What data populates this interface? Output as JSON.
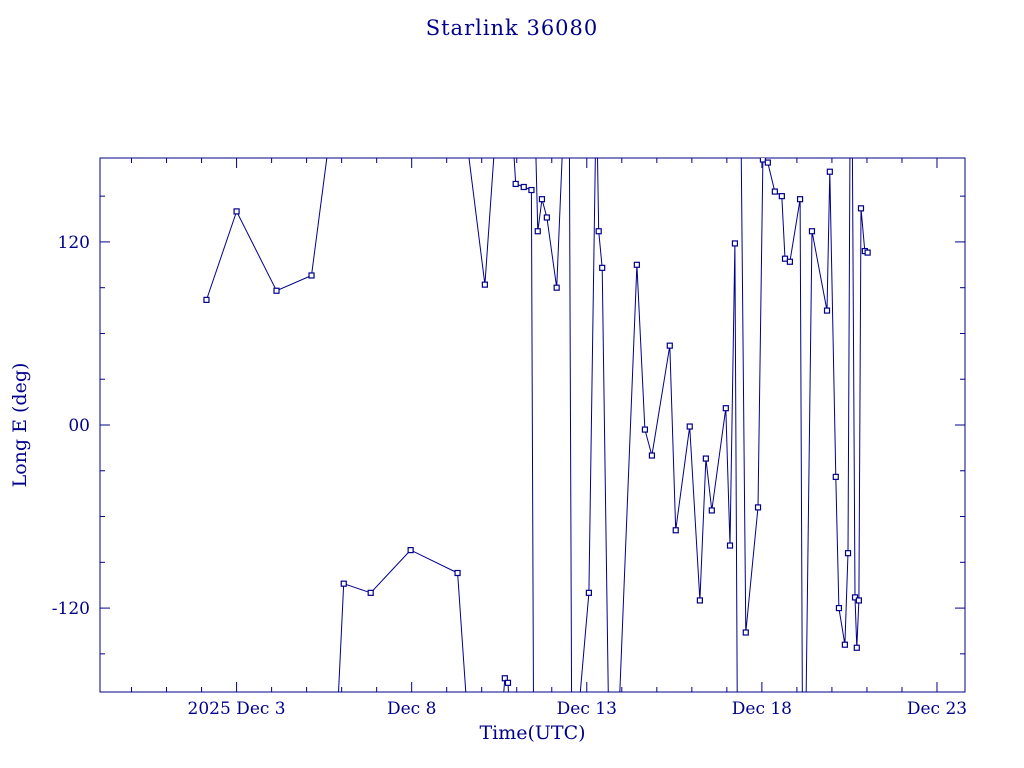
{
  "title": "Starlink 36080",
  "colors": {
    "plot": "#00008B",
    "background": "#ffffff"
  },
  "chart_data": {
    "type": "line",
    "title": "Starlink 36080",
    "xlabel": "Time(UTC)",
    "ylabel": "Long E (deg)",
    "marker": "open-square",
    "color": "#00008B",
    "grid": false,
    "legend": "none",
    "xlim": [
      -0.9,
      23.8
    ],
    "ylim": [
      -175,
      175
    ],
    "x_unit": "day of 2025 Dec (UTC)",
    "x_major_ticks": [
      3,
      8,
      13,
      18,
      23
    ],
    "x_tick_labels": [
      "2025 Dec 3",
      "Dec 8",
      "Dec 13",
      "Dec 18",
      "Dec 23"
    ],
    "x_minor_tick_step": 1,
    "y_major_ticks": [
      -120,
      0,
      120
    ],
    "y_tick_labels": [
      "-120",
      "00",
      "120"
    ],
    "y_minor_tick_step": 30,
    "segments": [
      [
        [
          2.14,
          82
        ],
        [
          3.0,
          140
        ],
        [
          4.14,
          88
        ],
        [
          5.14,
          98
        ],
        [
          5.72,
          200
        ]
      ],
      [
        [
          5.86,
          -200
        ],
        [
          6.06,
          -104
        ],
        [
          6.83,
          -110
        ],
        [
          7.97,
          -82
        ],
        [
          9.31,
          -97
        ],
        [
          9.62,
          -200
        ]
      ],
      [
        [
          9.5,
          200
        ],
        [
          10.09,
          92
        ],
        [
          10.42,
          200
        ]
      ],
      [
        [
          10.55,
          -200
        ],
        [
          10.66,
          -166
        ],
        [
          10.75,
          -169
        ],
        [
          10.82,
          -200
        ]
      ],
      [
        [
          10.86,
          200
        ],
        [
          10.97,
          158
        ],
        [
          11.2,
          156
        ],
        [
          11.42,
          154
        ],
        [
          11.48,
          -200
        ]
      ],
      [
        [
          11.52,
          200
        ],
        [
          11.6,
          127
        ],
        [
          11.72,
          148
        ],
        [
          11.86,
          136
        ],
        [
          12.14,
          90
        ],
        [
          12.34,
          200
        ]
      ],
      [
        [
          12.5,
          200
        ],
        [
          12.57,
          -200
        ]
      ],
      [
        [
          12.72,
          -200
        ],
        [
          13.06,
          -110
        ],
        [
          13.26,
          200
        ]
      ],
      [
        [
          13.29,
          200
        ],
        [
          13.34,
          127
        ],
        [
          13.44,
          103
        ],
        [
          13.63,
          -200
        ]
      ],
      [
        [
          13.9,
          -200
        ],
        [
          14.43,
          105
        ],
        [
          14.66,
          -3
        ],
        [
          14.86,
          -20
        ],
        [
          15.37,
          52
        ],
        [
          15.54,
          -69
        ],
        [
          15.94,
          -1
        ],
        [
          16.23,
          -115
        ],
        [
          16.4,
          -22
        ],
        [
          16.57,
          -56
        ],
        [
          16.97,
          11
        ],
        [
          17.09,
          -79
        ],
        [
          17.23,
          119
        ],
        [
          17.3,
          -200
        ]
      ],
      [
        [
          17.4,
          200
        ],
        [
          17.54,
          -136
        ],
        [
          17.89,
          -54
        ],
        [
          18.03,
          174
        ],
        [
          18.17,
          172
        ],
        [
          18.37,
          153
        ],
        [
          18.57,
          150
        ],
        [
          18.66,
          109
        ],
        [
          18.8,
          107
        ],
        [
          19.09,
          148
        ],
        [
          19.16,
          -200
        ]
      ],
      [
        [
          19.25,
          -200
        ],
        [
          19.43,
          127
        ],
        [
          19.86,
          75
        ],
        [
          19.94,
          166
        ],
        [
          20.11,
          -34
        ],
        [
          20.2,
          -120
        ],
        [
          20.37,
          -144
        ],
        [
          20.46,
          -84
        ],
        [
          20.52,
          200
        ]
      ],
      [
        [
          20.58,
          200
        ],
        [
          20.66,
          -113
        ],
        [
          20.71,
          -146
        ],
        [
          20.77,
          -115
        ],
        [
          20.83,
          142
        ],
        [
          20.94,
          114
        ],
        [
          21.02,
          113
        ]
      ]
    ]
  }
}
